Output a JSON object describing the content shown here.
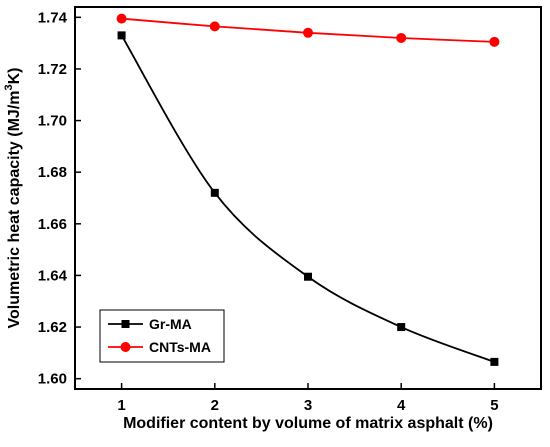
{
  "chart_data": {
    "type": "line",
    "xlabel": "Modifier content by volume of matrix asphalt (%)",
    "ylabel_main": "Volumetric heat capacity (MJ/m",
    "ylabel_sup": "3",
    "ylabel_tail": "K)",
    "x": [
      1,
      2,
      3,
      4,
      5
    ],
    "x_ticks": [
      "1",
      "2",
      "3",
      "4",
      "5"
    ],
    "y_ticks": [
      "1.60",
      "1.62",
      "1.64",
      "1.66",
      "1.68",
      "1.70",
      "1.72",
      "1.74"
    ],
    "xlim": [
      0.5,
      5.5
    ],
    "ylim": [
      1.596,
      1.744
    ],
    "grid": false,
    "legend_position": "bottom-left",
    "series": [
      {
        "name": "Gr-MA",
        "values": [
          1.733,
          1.672,
          1.6395,
          1.62,
          1.6065
        ],
        "color": "#000000",
        "marker": "square",
        "smooth": true
      },
      {
        "name": "CNTs-MA",
        "values": [
          1.7395,
          1.7365,
          1.734,
          1.732,
          1.7305
        ],
        "color": "#ff0000",
        "marker": "circle",
        "smooth": true
      }
    ]
  }
}
